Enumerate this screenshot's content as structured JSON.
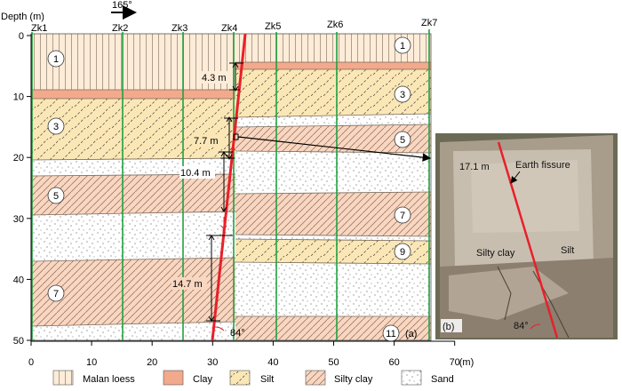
{
  "axes": {
    "y_title": "Depth (m)",
    "y_ticks": [
      "0",
      "10",
      "20",
      "30",
      "40",
      "50"
    ],
    "x_ticks": [
      "0",
      "10",
      "20",
      "30",
      "40",
      "50",
      "60",
      "70"
    ],
    "x_unit": "(m)"
  },
  "direction": "165°",
  "boreholes": [
    "Zk1",
    "Zk2",
    "Zk3",
    "Zk4",
    "Zk5",
    "Zk6",
    "Zk7"
  ],
  "layer_numbers": {
    "left": [
      "1",
      "3",
      "5",
      "7"
    ],
    "right": [
      "1",
      "3",
      "5",
      "7",
      "9",
      "11"
    ]
  },
  "offsets": [
    "4.3 m",
    "7.7 m",
    "10.4 m",
    "14.7 m"
  ],
  "fault_angle": "84°",
  "panel_a": "(a)",
  "photo": {
    "panel": "(b)",
    "depth": "17.1 m",
    "feature": "Earth fissure",
    "left_unit": "Silty clay",
    "right_unit": "Silt",
    "angle": "84°"
  },
  "legend": [
    "Malan loess",
    "Clay",
    "Silt",
    "Silty clay",
    "Sand"
  ],
  "colors": {
    "loess": "#fdecd8",
    "clay": "#f3a98c",
    "silt": "#fbe7b6",
    "silty_clay": "#f9d6c0",
    "sand": "#ffffff",
    "borehole": "#20a040",
    "fault": "#e8202a"
  }
}
